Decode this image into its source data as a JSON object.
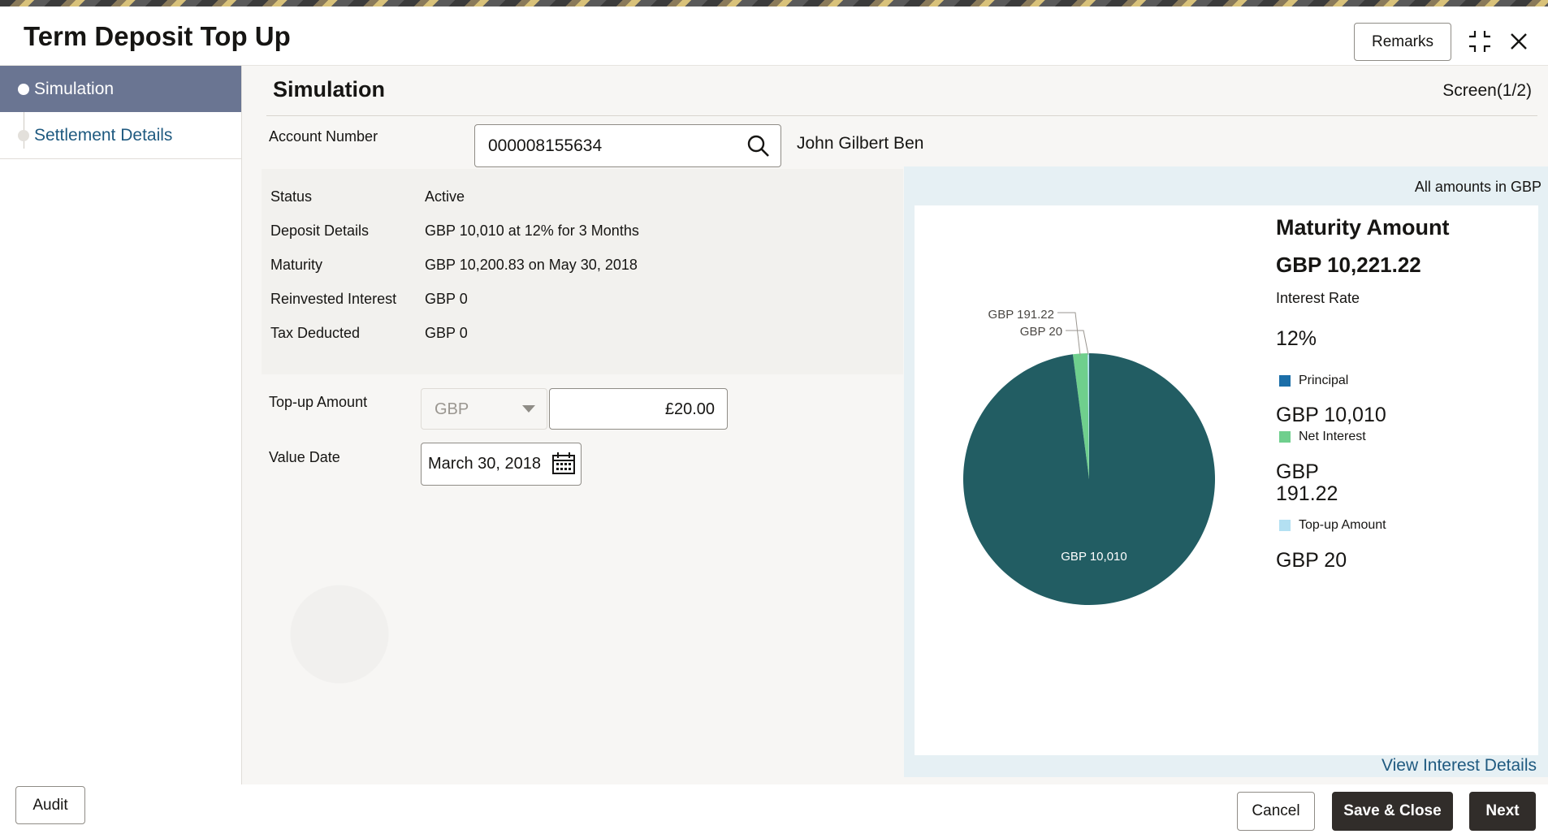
{
  "window": {
    "title": "Term Deposit Top Up",
    "remarks_label": "Remarks"
  },
  "sidebar": {
    "items": [
      {
        "label": "Simulation"
      },
      {
        "label": "Settlement Details"
      }
    ]
  },
  "main": {
    "section_title": "Simulation",
    "screen_count": "Screen(1/2)",
    "account": {
      "label": "Account Number",
      "value": "000008155634",
      "customer_name": "John Gilbert Ben"
    },
    "summary": [
      {
        "label": "Status",
        "value": "Active"
      },
      {
        "label": "Deposit Details",
        "value": "GBP 10,010 at 12% for 3 Months"
      },
      {
        "label": "Maturity",
        "value": "GBP 10,200.83 on May 30, 2018"
      },
      {
        "label": "Reinvested Interest",
        "value": "GBP 0"
      },
      {
        "label": "Tax Deducted",
        "value": "GBP 0"
      }
    ],
    "topup": {
      "label": "Top-up Amount",
      "currency": "GBP",
      "amount": "£20.00"
    },
    "value_date": {
      "label": "Value Date",
      "value": "March 30, 2018"
    }
  },
  "chart_panel": {
    "all_amounts": "All amounts in GBP",
    "maturity_title": "Maturity Amount",
    "maturity_value": "GBP 10,221.22",
    "interest_rate_label": "Interest Rate",
    "interest_rate_value": "12%",
    "legend_values": [
      "GBP 10,010",
      "GBP\n191.22",
      "GBP 20"
    ],
    "view_link": "View Interest Details"
  },
  "chart_data": {
    "type": "pie",
    "series": [
      {
        "name": "Principal",
        "value": 10010,
        "label": "GBP 10,010",
        "color": "#225d63"
      },
      {
        "name": "Net Interest",
        "value": 191.22,
        "label": "GBP 191.22",
        "color": "#6fcf8d"
      },
      {
        "name": "Top-up Amount",
        "value": 20,
        "label": "GBP 20",
        "color": "#b3e0f2"
      }
    ]
  },
  "footer": {
    "audit_label": "Audit",
    "cancel_label": "Cancel",
    "save_close_label": "Save & Close",
    "next_label": "Next"
  }
}
